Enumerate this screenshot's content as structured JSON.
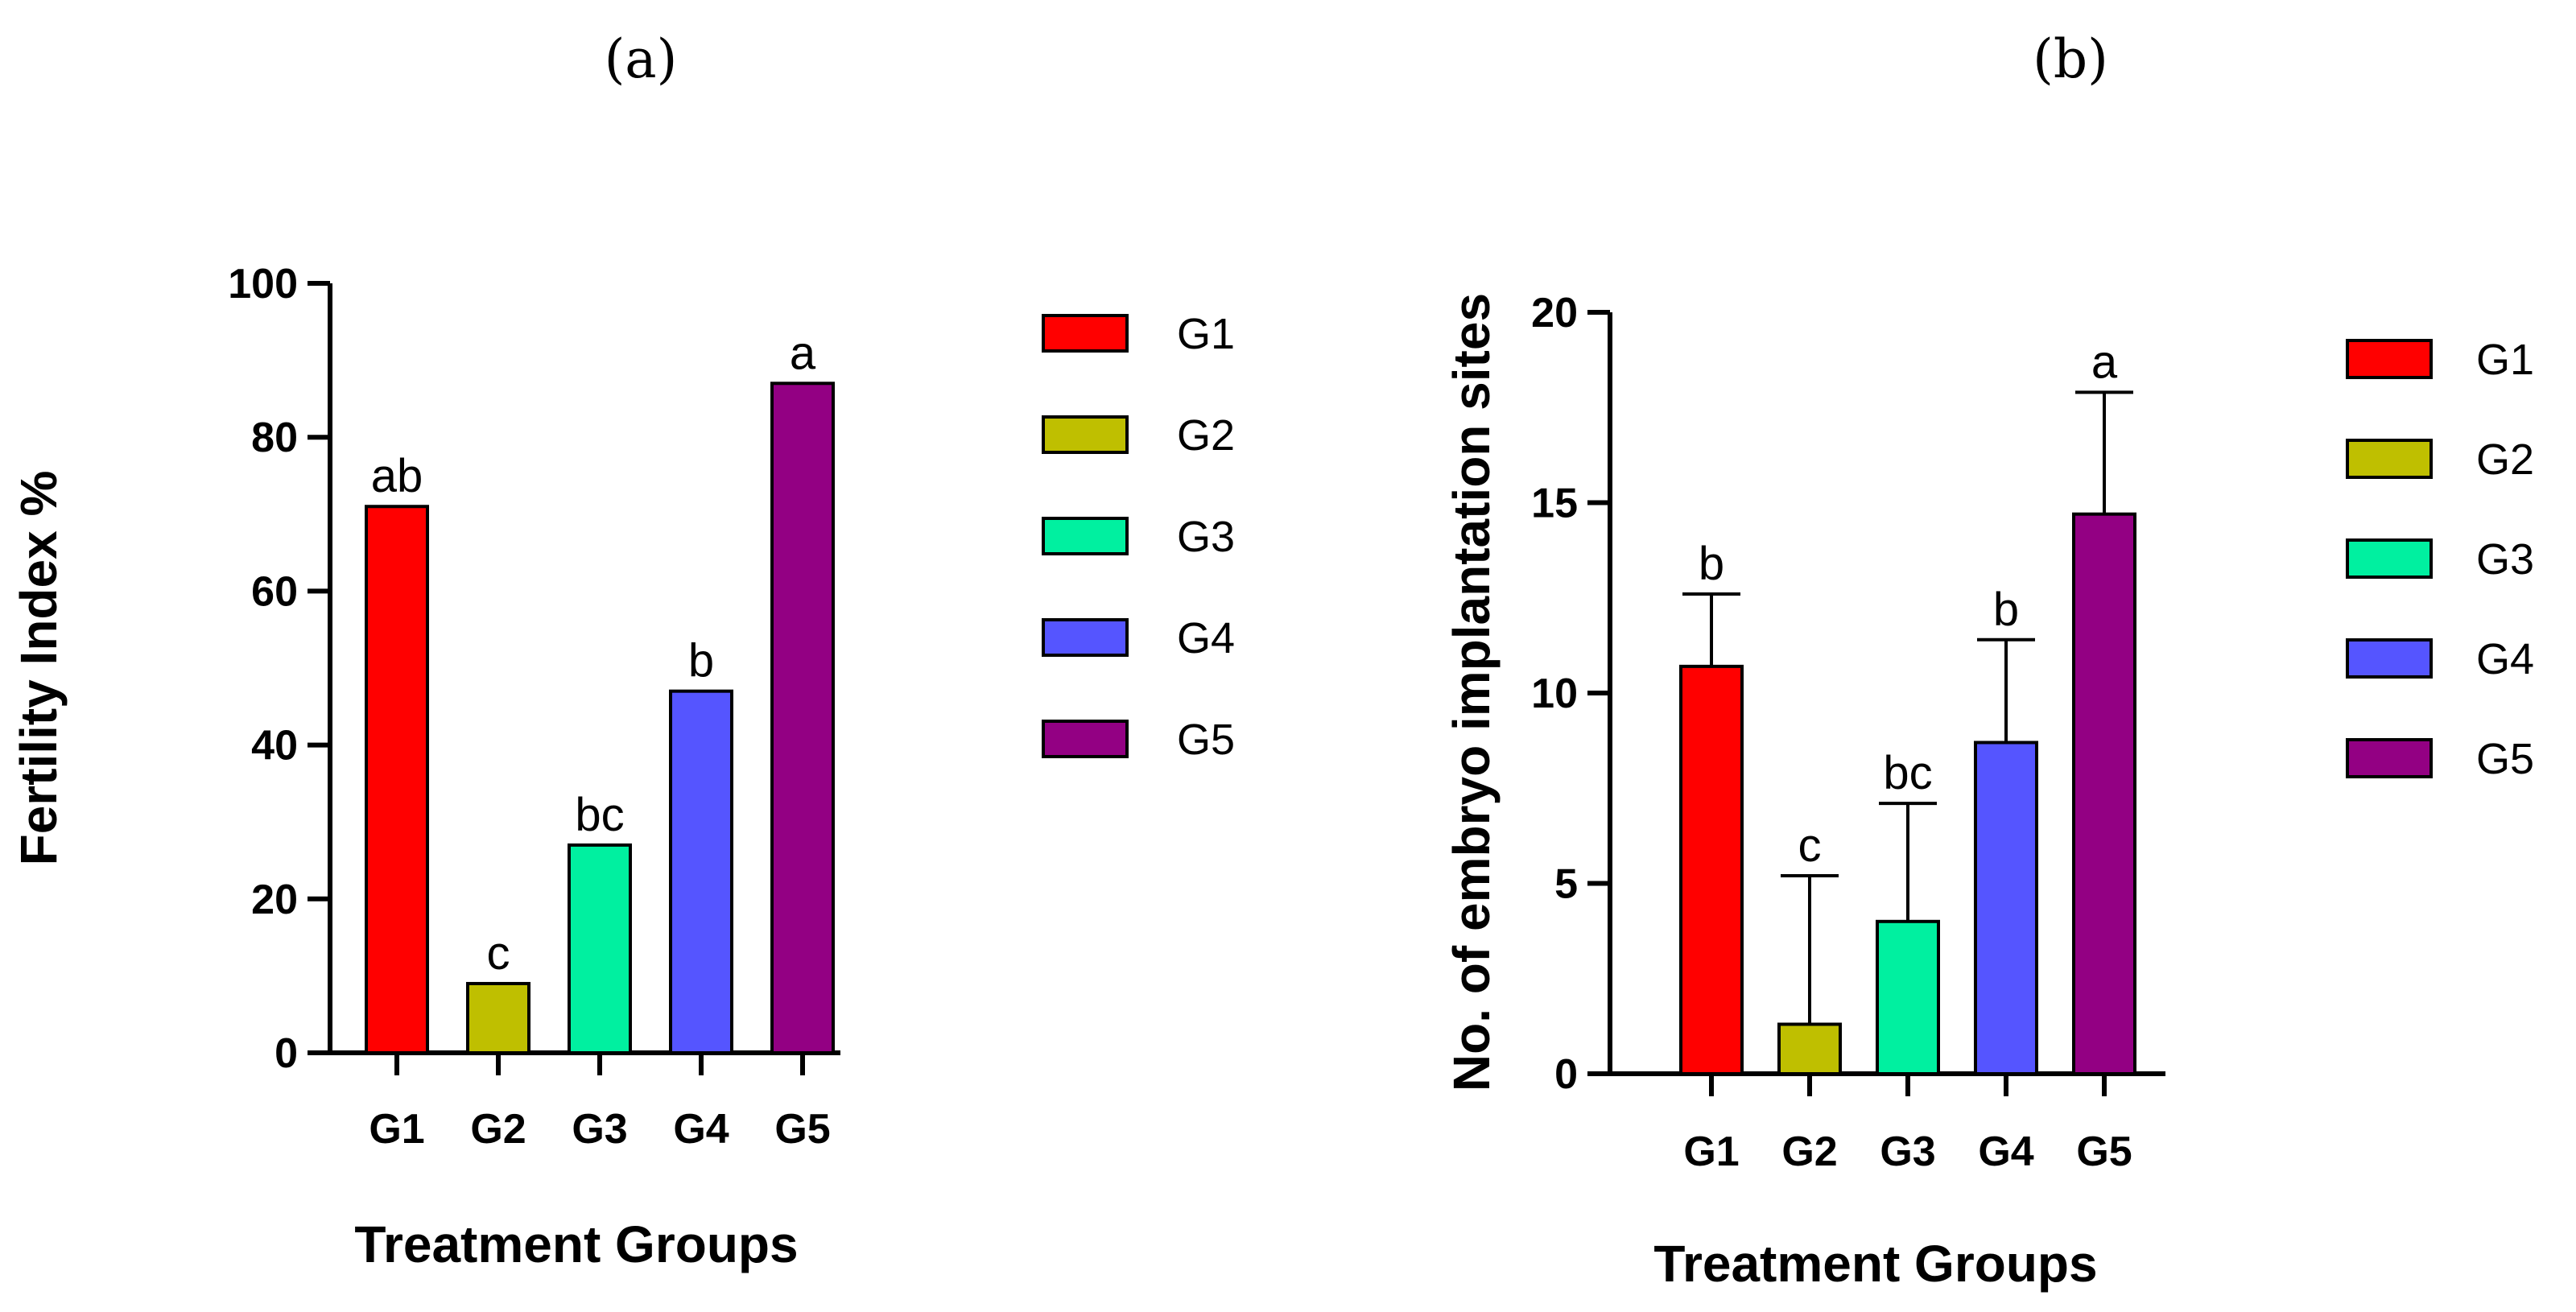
{
  "chart_data": [
    {
      "type": "bar",
      "panel_label": "(a)",
      "title": "",
      "xlabel": "Treatment Groups",
      "ylabel": "Fertility Index %",
      "categories": [
        "G1",
        "G2",
        "G3",
        "G4",
        "G5"
      ],
      "values": [
        71,
        9,
        27,
        47,
        87
      ],
      "error": null,
      "significance": [
        "ab",
        "c",
        "bc",
        "b",
        "a"
      ],
      "ylim": [
        0,
        100
      ],
      "yticks": [
        0,
        20,
        40,
        60,
        80,
        100
      ],
      "grid": false,
      "legend": [
        "G1",
        "G2",
        "G3",
        "G4",
        "G5"
      ],
      "legend_position": "right"
    },
    {
      "type": "bar",
      "panel_label": "(b)",
      "title": "",
      "xlabel": "Treatment Groups",
      "ylabel": "No. of embryo implantation sites",
      "categories": [
        "G1",
        "G2",
        "G3",
        "G4",
        "G5"
      ],
      "values": [
        10.7,
        1.3,
        4.0,
        8.7,
        14.7
      ],
      "error": [
        1.9,
        3.9,
        3.1,
        2.7,
        3.2
      ],
      "significance": [
        "b",
        "c",
        "bc",
        "b",
        "a"
      ],
      "ylim": [
        0,
        20
      ],
      "yticks": [
        0,
        5,
        10,
        15,
        20
      ],
      "grid": false,
      "legend": [
        "G1",
        "G2",
        "G3",
        "G4",
        "G5"
      ],
      "legend_position": "right"
    }
  ],
  "colors": {
    "G1": "#ff0000",
    "G2": "#bfbf00",
    "G3": "#00f0a0",
    "G4": "#5555ff",
    "G5": "#930083"
  }
}
